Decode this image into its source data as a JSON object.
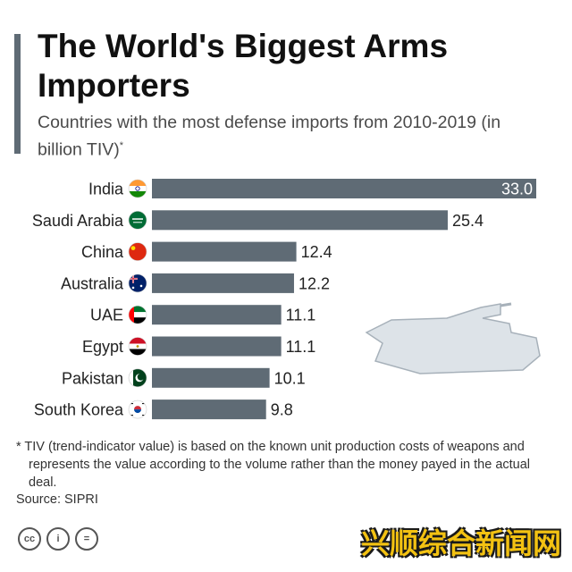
{
  "header": {
    "title": "The World's Biggest Arms Importers",
    "subtitle": "Countries with the most defense imports from 2010-2019 (in billion TIV)",
    "subtitle_mark": "*"
  },
  "chart_data": {
    "type": "bar",
    "orientation": "horizontal",
    "categories": [
      "India",
      "Saudi Arabia",
      "China",
      "Australia",
      "UAE",
      "Egypt",
      "Pakistan",
      "South Korea"
    ],
    "values": [
      33.0,
      25.4,
      12.4,
      12.2,
      11.1,
      11.1,
      10.1,
      9.8
    ],
    "value_labels": [
      "33.0",
      "25.4",
      "12.4",
      "12.2",
      "11.1",
      "11.1",
      "10.1",
      "9.8"
    ],
    "flags": [
      "india-flag-icon",
      "saudi-arabia-flag-icon",
      "china-flag-icon",
      "australia-flag-icon",
      "uae-flag-icon",
      "egypt-flag-icon",
      "pakistan-flag-icon",
      "south-korea-flag-icon"
    ],
    "xlim": [
      0,
      33.0
    ],
    "bar_color": "#5f6b75",
    "title": "",
    "xlabel": "",
    "ylabel": "",
    "grid": false,
    "legend": "none"
  },
  "footnote": "* TIV (trend-indicator value) is based on the known unit production costs of weapons and represents the value according to the volume rather than the money payed in the actual deal.",
  "source": "Source: SIPRI",
  "license_icons": [
    "cc-icon",
    "attribution-icon",
    "no-derivatives-icon"
  ],
  "license_glyphs": [
    "cc",
    "i",
    "="
  ],
  "decoration": {
    "tank": "tank-icon"
  },
  "watermark": "兴顺综合新闻网",
  "colors": {
    "bar": "#5f6b75",
    "accent": "#5f6b75",
    "tank": "#dde3e8",
    "watermark": "#f3c212"
  }
}
